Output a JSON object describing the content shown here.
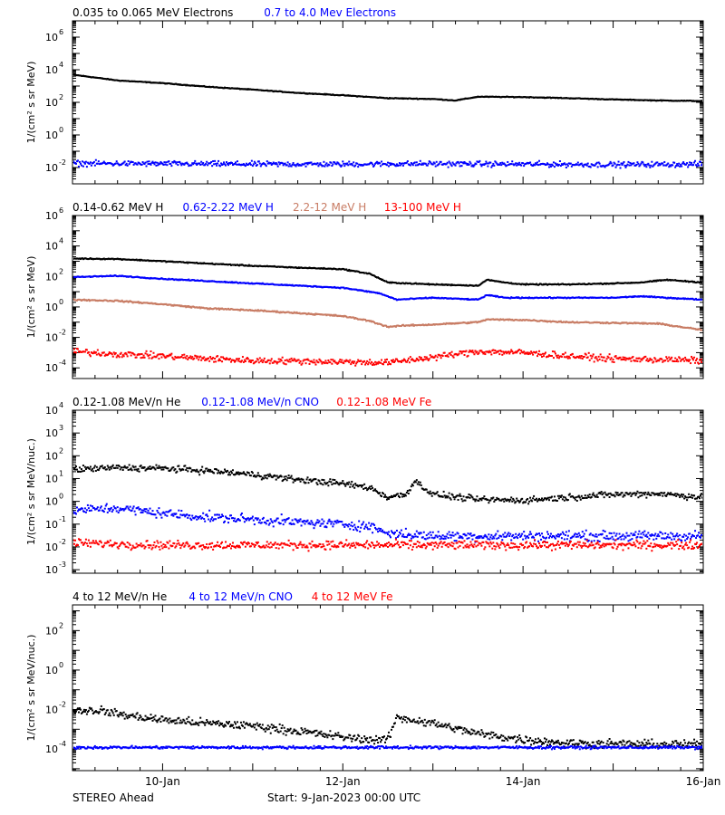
{
  "footer": {
    "left": "STEREO Ahead",
    "center": "Start:  9-Jan-2023 00:00 UTC"
  },
  "x_axis": {
    "range_days": [
      0,
      7
    ],
    "ticks": [
      {
        "day": 1,
        "label": "10-Jan"
      },
      {
        "day": 3,
        "label": "12-Jan"
      },
      {
        "day": 5,
        "label": "14-Jan"
      },
      {
        "day": 7,
        "label": "16-Jan"
      }
    ]
  },
  "chart_data": [
    {
      "type": "scatter",
      "title": "",
      "xlabel": "",
      "ylabel": "1/(cm² s sr MeV)",
      "log_y": true,
      "ylim": [
        0.001,
        10000000
      ],
      "y_ticks": [
        {
          "exp": "-2"
        },
        {
          "exp": "0"
        },
        {
          "exp": "2"
        },
        {
          "exp": "4"
        },
        {
          "exp": "6"
        }
      ],
      "series": [
        {
          "name": "0.035 to 0.065 MeV Electrons",
          "color": "#000000",
          "points": [
            [
              0,
              5000
            ],
            [
              0.5,
              2200
            ],
            [
              1,
              1500
            ],
            [
              1.5,
              900
            ],
            [
              2,
              600
            ],
            [
              2.5,
              380
            ],
            [
              3,
              270
            ],
            [
              3.5,
              180
            ],
            [
              4,
              160
            ],
            [
              4.25,
              130
            ],
            [
              4.5,
              220
            ],
            [
              5,
              210
            ],
            [
              5.5,
              180
            ],
            [
              6,
              150
            ],
            [
              6.5,
              130
            ],
            [
              7,
              120
            ]
          ],
          "scatter": 0.02
        },
        {
          "name": "0.7 to 4.0 Mev Electrons",
          "color": "#0000ff",
          "points": [
            [
              0,
              0.018
            ],
            [
              1,
              0.017
            ],
            [
              2,
              0.016
            ],
            [
              3,
              0.016
            ],
            [
              4,
              0.017
            ],
            [
              5,
              0.016
            ],
            [
              6,
              0.015
            ],
            [
              7,
              0.016
            ]
          ],
          "scatter": 0.14
        }
      ]
    },
    {
      "type": "scatter",
      "title": "",
      "xlabel": "",
      "ylabel": "1/(cm² s sr MeV)",
      "log_y": true,
      "ylim": [
        2e-05,
        1000000
      ],
      "y_ticks": [
        {
          "exp": "-4"
        },
        {
          "exp": "-2"
        },
        {
          "exp": "0"
        },
        {
          "exp": "2"
        },
        {
          "exp": "4"
        },
        {
          "exp": "6"
        }
      ],
      "series": [
        {
          "name": "0.14-0.62 MeV H",
          "color": "#000000",
          "points": [
            [
              0,
              1500
            ],
            [
              0.5,
              1400
            ],
            [
              1,
              1000
            ],
            [
              1.5,
              700
            ],
            [
              2,
              500
            ],
            [
              2.5,
              380
            ],
            [
              3,
              300
            ],
            [
              3.3,
              150
            ],
            [
              3.5,
              40
            ],
            [
              4,
              30
            ],
            [
              4.5,
              25
            ],
            [
              4.6,
              60
            ],
            [
              4.8,
              40
            ],
            [
              5,
              30
            ],
            [
              5.5,
              30
            ],
            [
              6,
              35
            ],
            [
              6.3,
              40
            ],
            [
              6.6,
              60
            ],
            [
              7,
              40
            ]
          ],
          "scatter": 0.03
        },
        {
          "name": "0.62-2.22 MeV H",
          "color": "#0000ff",
          "points": [
            [
              0,
              90
            ],
            [
              0.5,
              110
            ],
            [
              1,
              70
            ],
            [
              1.5,
              50
            ],
            [
              2,
              35
            ],
            [
              2.5,
              25
            ],
            [
              3,
              18
            ],
            [
              3.4,
              8
            ],
            [
              3.6,
              3
            ],
            [
              4,
              4
            ],
            [
              4.5,
              3
            ],
            [
              4.6,
              6
            ],
            [
              4.8,
              4
            ],
            [
              5,
              4
            ],
            [
              5.5,
              4
            ],
            [
              6,
              4
            ],
            [
              6.3,
              5
            ],
            [
              6.6,
              4
            ],
            [
              7,
              3
            ]
          ],
          "scatter": 0.03
        },
        {
          "name": "2.2-12 MeV H",
          "color": "#c87c64",
          "points": [
            [
              0,
              3
            ],
            [
              0.5,
              2.5
            ],
            [
              1,
              1.5
            ],
            [
              1.5,
              0.8
            ],
            [
              2,
              0.6
            ],
            [
              2.5,
              0.4
            ],
            [
              3,
              0.25
            ],
            [
              3.3,
              0.12
            ],
            [
              3.5,
              0.05
            ],
            [
              3.7,
              0.06
            ],
            [
              4,
              0.07
            ],
            [
              4.5,
              0.1
            ],
            [
              4.6,
              0.15
            ],
            [
              5,
              0.14
            ],
            [
              5.5,
              0.1
            ],
            [
              6,
              0.09
            ],
            [
              6.5,
              0.08
            ],
            [
              7,
              0.03
            ]
          ],
          "scatter": 0.04
        },
        {
          "name": "13-100 MeV H",
          "color": "#ff0000",
          "points": [
            [
              0,
              0.0012
            ],
            [
              0.5,
              0.0008
            ],
            [
              1,
              0.0006
            ],
            [
              1.5,
              0.0004
            ],
            [
              2,
              0.0003
            ],
            [
              2.5,
              0.00028
            ],
            [
              3,
              0.00025
            ],
            [
              3.5,
              0.00022
            ],
            [
              4,
              0.0005
            ],
            [
              4.5,
              0.0012
            ],
            [
              5,
              0.001
            ],
            [
              5.5,
              0.0006
            ],
            [
              6,
              0.0004
            ],
            [
              6.5,
              0.00035
            ],
            [
              7,
              0.0003
            ]
          ],
          "scatter": 0.18
        }
      ]
    },
    {
      "type": "scatter",
      "title": "",
      "xlabel": "",
      "ylabel": "1/(cm² s sr MeV/nuc.)",
      "log_y": true,
      "ylim": [
        0.0007,
        10000
      ],
      "y_ticks": [
        {
          "exp": "-3"
        },
        {
          "exp": "-2"
        },
        {
          "exp": "-1"
        },
        {
          "exp": "0"
        },
        {
          "exp": "1"
        },
        {
          "exp": "2"
        },
        {
          "exp": "3"
        },
        {
          "exp": "4"
        }
      ],
      "series": [
        {
          "name": "0.12-1.08 MeV/n He",
          "color": "#000000",
          "points": [
            [
              0,
              25
            ],
            [
              0.5,
              30
            ],
            [
              1,
              28
            ],
            [
              1.5,
              22
            ],
            [
              2,
              15
            ],
            [
              2.5,
              9
            ],
            [
              3,
              6
            ],
            [
              3.3,
              4
            ],
            [
              3.5,
              1.5
            ],
            [
              3.7,
              2
            ],
            [
              3.8,
              8
            ],
            [
              3.9,
              4
            ],
            [
              4,
              2
            ],
            [
              4.5,
              1.2
            ],
            [
              5,
              1.1
            ],
            [
              5.5,
              1.5
            ],
            [
              6,
              2
            ],
            [
              6.5,
              2.2
            ],
            [
              7,
              1.5
            ]
          ],
          "scatter": 0.12
        },
        {
          "name": "0.12-1.08 MeV/n CNO",
          "color": "#0000ff",
          "points": [
            [
              0,
              0.4
            ],
            [
              0.5,
              0.5
            ],
            [
              1,
              0.3
            ],
            [
              1.5,
              0.2
            ],
            [
              2,
              0.16
            ],
            [
              2.5,
              0.12
            ],
            [
              3,
              0.1
            ],
            [
              3.3,
              0.08
            ],
            [
              3.5,
              0.04
            ],
            [
              4,
              0.03
            ],
            [
              5,
              0.03
            ],
            [
              6,
              0.03
            ],
            [
              7,
              0.03
            ]
          ],
          "scatter": 0.18
        },
        {
          "name": "0.12-1.08 MeV Fe",
          "color": "#ff0000",
          "points": [
            [
              0,
              0.015
            ],
            [
              1,
              0.012
            ],
            [
              2,
              0.012
            ],
            [
              3,
              0.012
            ],
            [
              4,
              0.012
            ],
            [
              5,
              0.012
            ],
            [
              6,
              0.012
            ],
            [
              7,
              0.012
            ]
          ],
          "scatter": 0.16
        }
      ]
    },
    {
      "type": "scatter",
      "title": "",
      "xlabel": "",
      "ylabel": "1/(cm² s sr MeV/nuc.)",
      "log_y": true,
      "ylim": [
        8e-06,
        2000
      ],
      "y_ticks": [
        {
          "exp": "-4"
        },
        {
          "exp": "-2"
        },
        {
          "exp": "0"
        },
        {
          "exp": "2"
        }
      ],
      "series": [
        {
          "name": "4 to 12 MeV/n He",
          "color": "#000000",
          "points": [
            [
              0,
              0.009
            ],
            [
              0.3,
              0.009
            ],
            [
              0.6,
              0.005
            ],
            [
              1,
              0.003
            ],
            [
              1.5,
              0.002
            ],
            [
              2,
              0.0015
            ],
            [
              2.5,
              0.0008
            ],
            [
              3,
              0.0004
            ],
            [
              3.3,
              0.0003
            ],
            [
              3.5,
              0.0003
            ],
            [
              3.6,
              0.004
            ],
            [
              4,
              0.002
            ],
            [
              4.5,
              0.0006
            ],
            [
              5,
              0.0003
            ],
            [
              5.5,
              0.0002
            ],
            [
              6,
              0.00018
            ],
            [
              6.5,
              0.00017
            ],
            [
              7,
              0.00017
            ]
          ],
          "scatter": 0.18
        },
        {
          "name": "4 to 12 MeV/n CNO",
          "color": "#0000ff",
          "points": [
            [
              0,
              0.00012
            ],
            [
              1,
              0.00012
            ],
            [
              2,
              0.00012
            ],
            [
              3,
              0.00012
            ],
            [
              4,
              0.00012
            ],
            [
              5,
              0.00012
            ],
            [
              6,
              0.00012
            ],
            [
              7,
              0.00012
            ]
          ],
          "scatter": 0.06
        },
        {
          "name": "4 to 12 MeV Fe",
          "color": "#ff0000",
          "points": [],
          "scatter": 0
        }
      ]
    }
  ]
}
